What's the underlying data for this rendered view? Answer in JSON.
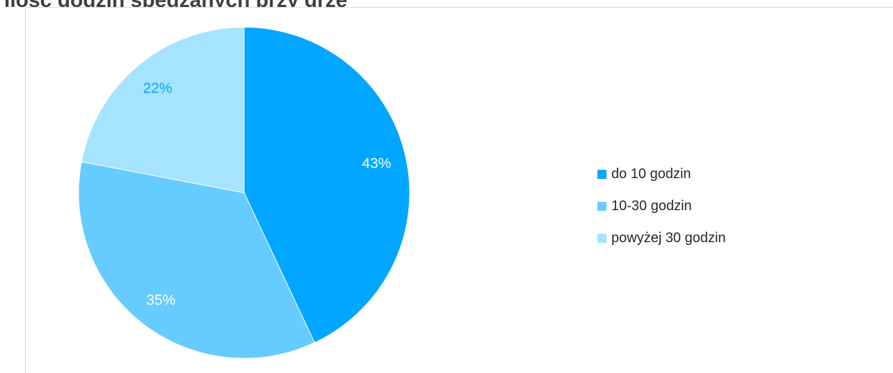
{
  "header": {
    "title": "Ilość godzin spędzanych przy grze"
  },
  "chart_data": {
    "type": "pie",
    "title": "Ilość godzin spędzanych przy grze",
    "categories": [
      "do 10 godzin",
      "10-30 godzin",
      "powyżej 30 godzin"
    ],
    "values": [
      43,
      35,
      22
    ],
    "data_labels": [
      "43%",
      "35%",
      "22%"
    ],
    "colors": [
      "#00a6ff",
      "#66ccff",
      "#a6e3ff"
    ],
    "label_colors": [
      "#ffffff",
      "#ffffff",
      "#00a6ff"
    ],
    "legend_position": "right",
    "start_angle": "12 o'clock",
    "direction": "clockwise"
  }
}
